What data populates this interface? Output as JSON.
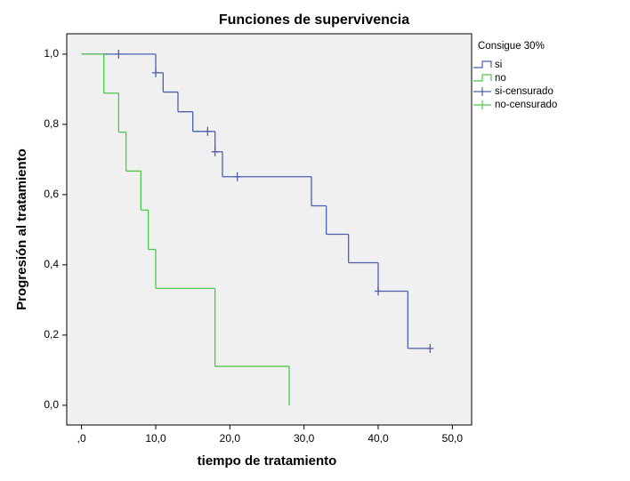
{
  "chart_data": {
    "type": "step",
    "title": "Funciones de supervivencia",
    "x_label": "tiempo de tratamiento",
    "y_label": "Progresión al tratamiento",
    "legend_title": "Consigue 30%",
    "xlim": [
      -2,
      52.6
    ],
    "ylim": [
      -0.056,
      1.058
    ],
    "xticks": [
      {
        "value": 0,
        "label": ",0"
      },
      {
        "value": 10,
        "label": "10,0"
      },
      {
        "value": 20,
        "label": "20,0"
      },
      {
        "value": 30,
        "label": "30,0"
      },
      {
        "value": 40,
        "label": "40,0"
      },
      {
        "value": 50,
        "label": "50,0"
      }
    ],
    "yticks": [
      {
        "value": 0,
        "label": "0,0"
      },
      {
        "value": 0.2,
        "label": "0,2"
      },
      {
        "value": 0.4,
        "label": "0,4"
      },
      {
        "value": 0.6,
        "label": "0,6"
      },
      {
        "value": 0.8,
        "label": "0,8"
      },
      {
        "value": 1,
        "label": "1,0"
      }
    ],
    "series": [
      {
        "name": "si",
        "kind": "step",
        "color": "#4a5fb0",
        "x": [
          0,
          10,
          11,
          13,
          15,
          18,
          19,
          31,
          33,
          36,
          40,
          44,
          47
        ],
        "values": [
          1,
          0.947,
          0.892,
          0.836,
          0.78,
          0.722,
          0.651,
          0.568,
          0.487,
          0.406,
          0.325,
          0.162,
          0.162
        ]
      },
      {
        "name": "no",
        "kind": "step",
        "color": "#4cc84c",
        "x": [
          0,
          3,
          5,
          6,
          8,
          9,
          10,
          18,
          28
        ],
        "values": [
          1,
          0.889,
          0.778,
          0.667,
          0.556,
          0.444,
          0.333,
          0.111,
          0
        ]
      },
      {
        "name": "si-censurado",
        "kind": "censored",
        "color": "#4a5fb0",
        "x": [
          5,
          10,
          17,
          18,
          21,
          40,
          47
        ],
        "values": [
          1,
          0.947,
          0.78,
          0.722,
          0.651,
          0.325,
          0.162
        ]
      },
      {
        "name": "no-censurado",
        "kind": "censored",
        "color": "#4cc84c",
        "x": [],
        "values": []
      }
    ]
  }
}
